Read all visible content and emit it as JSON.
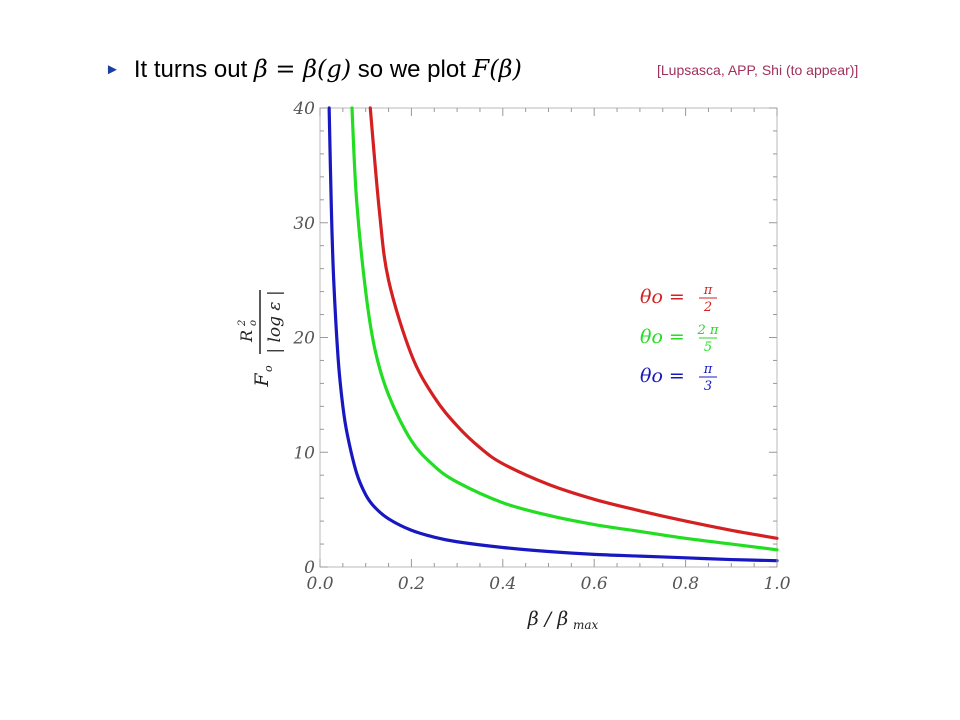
{
  "slide": {
    "bullet_marker": "►",
    "bullet": {
      "t1": "It turns out ",
      "m1": "β = β(g)",
      "t2": " so we plot ",
      "m2": "F(β)"
    },
    "citation": "[Lupsasca, APP, Shi (to appear)]"
  },
  "chart_data": {
    "type": "line",
    "xlabel": "β / β_max",
    "ylabel": "F_o R_o² / |log ε|",
    "xlim": [
      0.0,
      1.0
    ],
    "ylim": [
      0,
      40
    ],
    "x_ticks": [
      "0.0",
      "0.2",
      "0.4",
      "0.6",
      "0.8",
      "1.0"
    ],
    "y_ticks": [
      "0",
      "10",
      "20",
      "30",
      "40"
    ],
    "grid": false,
    "legend_position": "right-middle",
    "series": [
      {
        "name": "θo = π/2",
        "legend_lhs": "θo =",
        "legend_num": "π",
        "legend_den": "2",
        "color": "#d42020",
        "x": [
          0.11,
          0.13,
          0.15,
          0.2,
          0.25,
          0.3,
          0.35,
          0.4,
          0.5,
          0.6,
          0.7,
          0.8,
          0.9,
          1.0
        ],
        "y": [
          40,
          31,
          25,
          18.5,
          14.8,
          12.3,
          10.4,
          9.0,
          7.2,
          5.9,
          4.9,
          4.0,
          3.2,
          2.5
        ]
      },
      {
        "name": "θo = 2π/5",
        "legend_lhs": "θo =",
        "legend_num": "2 π",
        "legend_den": "5",
        "color": "#22dd22",
        "x": [
          0.07,
          0.08,
          0.1,
          0.12,
          0.15,
          0.2,
          0.25,
          0.3,
          0.4,
          0.5,
          0.6,
          0.7,
          0.8,
          0.9,
          1.0
        ],
        "y": [
          40,
          32,
          24,
          19,
          15,
          11,
          8.8,
          7.4,
          5.6,
          4.5,
          3.7,
          3.1,
          2.5,
          2.0,
          1.5
        ]
      },
      {
        "name": "θo = π/3",
        "legend_lhs": "θo =",
        "legend_num": "π",
        "legend_den": "3",
        "color": "#1818c0",
        "x": [
          0.02,
          0.025,
          0.03,
          0.04,
          0.05,
          0.06,
          0.08,
          0.1,
          0.12,
          0.15,
          0.2,
          0.25,
          0.3,
          0.4,
          0.5,
          0.6,
          0.7,
          0.8,
          0.9,
          1.0
        ],
        "y": [
          40,
          31,
          25,
          18,
          14,
          11.5,
          8.2,
          6.3,
          5.2,
          4.2,
          3.2,
          2.6,
          2.2,
          1.7,
          1.35,
          1.1,
          0.95,
          0.8,
          0.65,
          0.55
        ]
      }
    ]
  }
}
